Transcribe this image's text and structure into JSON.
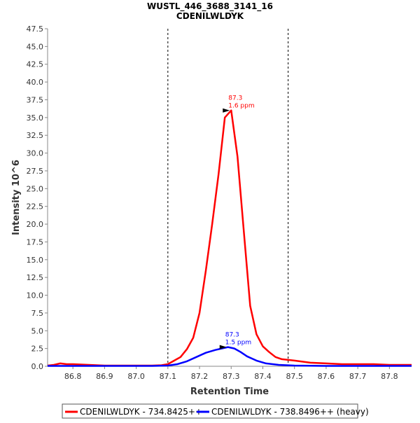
{
  "chart_data": {
    "type": "line",
    "title": "WUSTL_446_3688_3141_16",
    "subtitle": "CDENILWLDYK",
    "xlabel": "Retention Time",
    "ylabel": "Intensity 10^6",
    "xlim": [
      86.72,
      87.87
    ],
    "ylim": [
      0,
      47.5
    ],
    "xticks": [
      86.8,
      86.9,
      87.0,
      87.1,
      87.2,
      87.3,
      87.4,
      87.5,
      87.6,
      87.7,
      87.8
    ],
    "yticks": [
      0,
      2.5,
      5,
      7.5,
      10,
      12.5,
      15,
      17.5,
      20,
      22.5,
      25,
      27.5,
      30,
      32.5,
      35,
      37.5,
      40,
      42.5,
      45,
      47.5
    ],
    "grid": false,
    "legend_position": "bottom",
    "boundaries": [
      87.1,
      87.48
    ],
    "series": [
      {
        "name": "CDENILWLDYK - 734.8425++",
        "color": "#ff0000",
        "x": [
          86.72,
          86.74,
          86.76,
          86.78,
          86.8,
          86.85,
          86.9,
          86.95,
          87.0,
          87.05,
          87.08,
          87.1,
          87.12,
          87.14,
          87.16,
          87.18,
          87.2,
          87.22,
          87.24,
          87.26,
          87.28,
          87.3,
          87.32,
          87.34,
          87.36,
          87.38,
          87.4,
          87.42,
          87.44,
          87.46,
          87.48,
          87.5,
          87.55,
          87.6,
          87.65,
          87.7,
          87.75,
          87.8,
          87.87
        ],
        "y": [
          0.1,
          0.2,
          0.4,
          0.3,
          0.3,
          0.2,
          0.1,
          0.1,
          0.1,
          0.1,
          0.15,
          0.3,
          0.8,
          1.3,
          2.4,
          4.0,
          7.5,
          13.5,
          20.0,
          27.0,
          35.0,
          36.0,
          29.5,
          19.0,
          8.5,
          4.5,
          2.8,
          2.0,
          1.3,
          1.0,
          0.9,
          0.8,
          0.5,
          0.4,
          0.3,
          0.3,
          0.3,
          0.2,
          0.2
        ]
      },
      {
        "name": "CDENILWLDYK - 738.8496++ (heavy)",
        "color": "#0000ff",
        "x": [
          86.72,
          86.8,
          86.9,
          87.0,
          87.05,
          87.1,
          87.13,
          87.16,
          87.19,
          87.22,
          87.25,
          87.27,
          87.29,
          87.31,
          87.33,
          87.35,
          87.38,
          87.41,
          87.45,
          87.5,
          87.6,
          87.7,
          87.8,
          87.87
        ],
        "y": [
          0.05,
          0.05,
          0.05,
          0.05,
          0.05,
          0.1,
          0.3,
          0.7,
          1.3,
          1.9,
          2.3,
          2.5,
          2.7,
          2.5,
          2.0,
          1.4,
          0.8,
          0.4,
          0.2,
          0.1,
          0.05,
          0.05,
          0.05,
          0.05
        ]
      }
    ],
    "annotations": [
      {
        "series": 0,
        "x": 87.3,
        "y": 36.0,
        "line1": "87.3",
        "line2": "1.6 ppm"
      },
      {
        "series": 1,
        "x": 87.29,
        "y": 2.7,
        "line1": "87.3",
        "line2": "1.5 ppm"
      }
    ]
  }
}
